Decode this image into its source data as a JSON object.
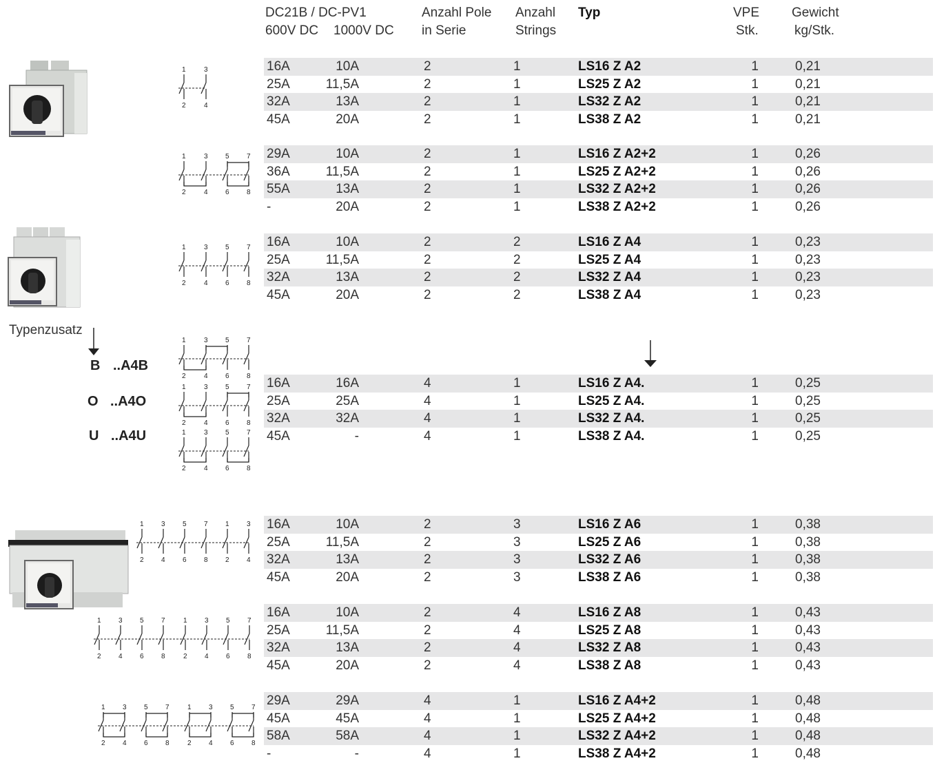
{
  "header": {
    "col_dc_title": "DC21B / DC-PV1",
    "col_600": "600V DC",
    "col_1000": "1000V DC",
    "col_poles_1": "Anzahl Pole",
    "col_poles_2": "in Serie",
    "col_strings_1": "Anzahl",
    "col_strings_2": "Strings",
    "col_typ": "Typ",
    "col_vpe_1": "VPE",
    "col_vpe_2": "Stk.",
    "col_weight_1": "Gewicht",
    "col_weight_2": "kg/Stk."
  },
  "groups": [
    {
      "rows": [
        [
          "16A",
          "10A",
          "2",
          "1",
          "LS16 Z A2",
          "1",
          "0,21"
        ],
        [
          "25A",
          "11,5A",
          "2",
          "1",
          "LS25 Z A2",
          "1",
          "0,21"
        ],
        [
          "32A",
          "13A",
          "2",
          "1",
          "LS32 Z A2",
          "1",
          "0,21"
        ],
        [
          "45A",
          "20A",
          "2",
          "1",
          "LS38 Z A2",
          "1",
          "0,21"
        ]
      ]
    },
    {
      "rows": [
        [
          "29A",
          "10A",
          "2",
          "1",
          "LS16 Z A2+2",
          "1",
          "0,26"
        ],
        [
          "36A",
          "11,5A",
          "2",
          "1",
          "LS25 Z A2+2",
          "1",
          "0,26"
        ],
        [
          "55A",
          "13A",
          "2",
          "1",
          "LS32 Z A2+2",
          "1",
          "0,26"
        ],
        [
          "-",
          "20A",
          "2",
          "1",
          "LS38 Z A2+2",
          "1",
          "0,26"
        ]
      ]
    },
    {
      "rows": [
        [
          "16A",
          "10A",
          "2",
          "2",
          "LS16 Z A4",
          "1",
          "0,23"
        ],
        [
          "25A",
          "11,5A",
          "2",
          "2",
          "LS25 Z A4",
          "1",
          "0,23"
        ],
        [
          "32A",
          "13A",
          "2",
          "2",
          "LS32 Z A4",
          "1",
          "0,23"
        ],
        [
          "45A",
          "20A",
          "2",
          "2",
          "LS38 Z A4",
          "1",
          "0,23"
        ]
      ]
    },
    {
      "rows": [
        [
          "16A",
          "16A",
          "4",
          "1",
          "LS16 Z A4.",
          "1",
          "0,25"
        ],
        [
          "25A",
          "25A",
          "4",
          "1",
          "LS25 Z A4.",
          "1",
          "0,25"
        ],
        [
          "32A",
          "32A",
          "4",
          "1",
          "LS32 Z A4.",
          "1",
          "0,25"
        ],
        [
          "45A",
          "-",
          "4",
          "1",
          "LS38 Z A4.",
          "1",
          "0,25"
        ]
      ]
    },
    {
      "rows": [
        [
          "16A",
          "10A",
          "2",
          "3",
          "LS16 Z A6",
          "1",
          "0,38"
        ],
        [
          "25A",
          "11,5A",
          "2",
          "3",
          "LS25 Z A6",
          "1",
          "0,38"
        ],
        [
          "32A",
          "13A",
          "2",
          "3",
          "LS32 Z A6",
          "1",
          "0,38"
        ],
        [
          "45A",
          "20A",
          "2",
          "3",
          "LS38 Z A6",
          "1",
          "0,38"
        ]
      ]
    },
    {
      "rows": [
        [
          "16A",
          "10A",
          "2",
          "4",
          "LS16 Z A8",
          "1",
          "0,43"
        ],
        [
          "25A",
          "11,5A",
          "2",
          "4",
          "LS25 Z A8",
          "1",
          "0,43"
        ],
        [
          "32A",
          "13A",
          "2",
          "4",
          "LS32 Z A8",
          "1",
          "0,43"
        ],
        [
          "45A",
          "20A",
          "2",
          "4",
          "LS38 Z A8",
          "1",
          "0,43"
        ]
      ]
    },
    {
      "rows": [
        [
          "29A",
          "29A",
          "4",
          "1",
          "LS16 Z A4+2",
          "1",
          "0,48"
        ],
        [
          "45A",
          "45A",
          "4",
          "1",
          "LS25 Z A4+2",
          "1",
          "0,48"
        ],
        [
          "58A",
          "58A",
          "4",
          "1",
          "LS32 Z A4+2",
          "1",
          "0,48"
        ],
        [
          "-",
          "-",
          "4",
          "1",
          "LS38 Z A4+2",
          "1",
          "0,48"
        ]
      ]
    }
  ],
  "typenzusatz": {
    "label": "Typenzusatz",
    "options": [
      {
        "letter": "B",
        "suffix": "..A4B"
      },
      {
        "letter": "O",
        "suffix": "..A4O"
      },
      {
        "letter": "U",
        "suffix": "..A4U"
      }
    ]
  },
  "diagram_terminals": {
    "pair_1": [
      "1",
      "3"
    ],
    "pair_2": [
      "2",
      "4"
    ],
    "quad_top": [
      "1",
      "3",
      "5",
      "7"
    ],
    "quad_bottom": [
      "2",
      "4",
      "6",
      "8"
    ]
  },
  "icons": {
    "switch_photo": "rotary-switch-photo",
    "contact_diagram": "switch-contact-diagram",
    "arrow": "down-arrow-icon"
  },
  "colors": {
    "row_shade": "#e6e6e7",
    "text": "#333333"
  }
}
